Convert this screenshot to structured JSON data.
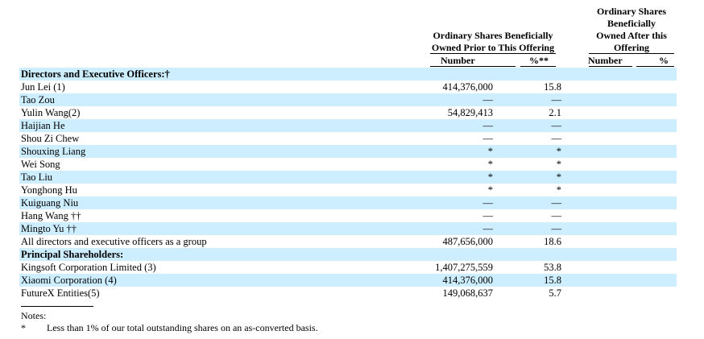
{
  "header": {
    "prior_title_1": "Ordinary Shares Beneficially",
    "prior_title_2": "Owned Prior to This Offering",
    "after_title_1": "Ordinary Shares",
    "after_title_2": "Beneficially",
    "after_title_3": "Owned After this",
    "after_title_4": "Offering",
    "number_label": "Number",
    "pct_prior_label": "%**",
    "pct_after_label": "%"
  },
  "rows": [
    {
      "label": "Directors and Executive Officers:†",
      "number": "",
      "pct": ""
    },
    {
      "label": "Jun Lei (1)",
      "number": "414,376,000",
      "pct": "15.8"
    },
    {
      "label": "Tao Zou",
      "number": "—",
      "pct": "—"
    },
    {
      "label": "Yulin Wang(2)",
      "number": "54,829,413",
      "pct": "2.1"
    },
    {
      "label": "Haijian He",
      "number": "—",
      "pct": "—"
    },
    {
      "label": "Shou Zi Chew",
      "number": "—",
      "pct": "—"
    },
    {
      "label": "Shouxing Liang",
      "number": "*",
      "pct": "*"
    },
    {
      "label": "Wei Song",
      "number": "*",
      "pct": "*"
    },
    {
      "label": "Tao Liu",
      "number": "*",
      "pct": "*"
    },
    {
      "label": "Yonghong Hu",
      "number": "*",
      "pct": "*"
    },
    {
      "label": "Kuiguang Niu",
      "number": "—",
      "pct": "—"
    },
    {
      "label": "Hang Wang ††",
      "number": "—",
      "pct": "—"
    },
    {
      "label": "Mingto Yu ††",
      "number": "—",
      "pct": "—"
    },
    {
      "label": "All directors and executive officers as a group",
      "number": "487,656,000",
      "pct": "18.6"
    },
    {
      "label": "Principal Shareholders:",
      "number": "",
      "pct": ""
    },
    {
      "label": "Kingsoft Corporation Limited (3)",
      "number": "1,407,275,559",
      "pct": "53.8"
    },
    {
      "label": "Xiaomi Corporation (4)",
      "number": "414,376,000",
      "pct": "15.8"
    },
    {
      "label": "FutureX Entities(5)",
      "number": "149,068,637",
      "pct": "5.7"
    }
  ],
  "notes": {
    "title": "Notes:",
    "mark": "*",
    "text": "Less than 1% of our total outstanding shares on an as-converted basis."
  }
}
